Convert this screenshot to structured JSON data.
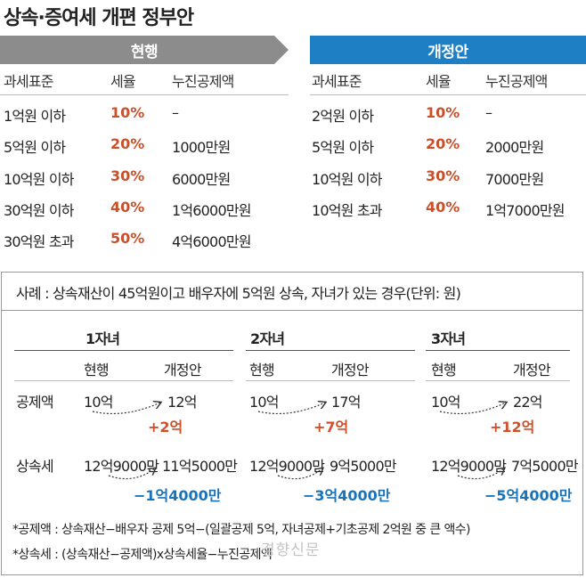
{
  "title": "상속·증여세 개편 정부안",
  "current": {
    "header": "현행",
    "columns": [
      "과세표준",
      "세율",
      "누진공제액"
    ],
    "rows": [
      [
        "1억원 이하",
        "10%",
        "–"
      ],
      [
        "5억원 이하",
        "20%",
        "1000만원"
      ],
      [
        "10억원 이하",
        "30%",
        "6000만원"
      ],
      [
        "30억원 이하",
        "40%",
        "1억6000만원"
      ],
      [
        "30억원 초과",
        "50%",
        "4억6000만원"
      ]
    ]
  },
  "proposal": {
    "header": "개정안",
    "columns": [
      "과세표준",
      "세율",
      "누진공제액"
    ],
    "rows": [
      [
        "2억원 이하",
        "10%",
        "–"
      ],
      [
        "5억원 이하",
        "20%",
        "2000만원"
      ],
      [
        "10억원 이하",
        "30%",
        "7000만원"
      ],
      [
        "10억원 초과",
        "40%",
        "1억7000만원"
      ]
    ]
  },
  "case": {
    "title": "사례 : 상속재산이 45억원이고 배우자에 5억원 상속, 자녀가 있는 경우(단위: 원)",
    "row_labels": [
      "공제액",
      "상속세"
    ],
    "sub_headers": [
      "현행",
      "개정안"
    ],
    "groups": [
      {
        "name": "1자녀",
        "deduction": [
          "10억",
          "12억"
        ],
        "deduction_diff": "+2억",
        "tax": [
          "12억9000만",
          "11억5000만"
        ],
        "tax_diff": "−1억4000만"
      },
      {
        "name": "2자녀",
        "deduction": [
          "10억",
          "17억"
        ],
        "deduction_diff": "+7억",
        "tax": [
          "12억9000만",
          "9억5000만"
        ],
        "tax_diff": "−3억4000만"
      },
      {
        "name": "3자녀",
        "deduction": [
          "10억",
          "22억"
        ],
        "deduction_diff": "+12억",
        "tax": [
          "12억9000만",
          "7억5000만"
        ],
        "tax_diff": "−5억4000만"
      }
    ]
  },
  "notes": [
    "*공제액 : 상속재산−배우자 공제 5억−(일괄공제 5억, 자녀공제+기초공제 2억원 중 큰 액수)",
    "*상속세 : (상속재산−공제액)x상속세율−누진공제액"
  ],
  "watermark": "경향신문",
  "colors": {
    "current_header": "#8c8c8c",
    "proposal_header": "#1f7fc4",
    "rate": "#c8502a",
    "increase": "#d0502a",
    "decrease": "#1a73b8"
  }
}
